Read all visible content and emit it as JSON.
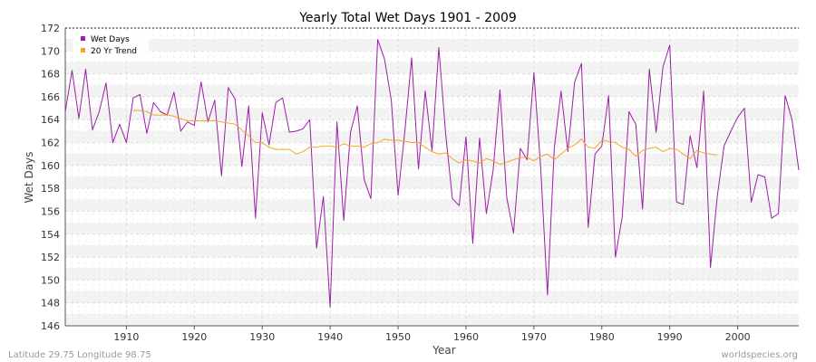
{
  "chart_data": {
    "type": "line",
    "title": "Yearly Total Wet Days 1901 - 2009",
    "xlabel": "Year",
    "ylabel": "Wet Days",
    "xlim": [
      1901,
      2009
    ],
    "ylim": [
      146,
      172
    ],
    "x_ticks": [
      1910,
      1920,
      1930,
      1940,
      1950,
      1960,
      1970,
      1980,
      1990,
      2000
    ],
    "y_ticks": [
      146,
      148,
      150,
      152,
      154,
      156,
      158,
      160,
      162,
      164,
      166,
      168,
      170,
      172
    ],
    "grid": true,
    "legend_position": "top-left",
    "series": [
      {
        "name": "Wet Days",
        "color": "#9b1fa8",
        "x_start": 1901,
        "values": [
          164.7,
          168.3,
          164.1,
          168.4,
          163.1,
          164.7,
          167.2,
          162.0,
          163.6,
          162.0,
          165.9,
          166.2,
          162.8,
          165.5,
          164.7,
          164.4,
          166.4,
          163.0,
          163.8,
          163.5,
          167.3,
          163.8,
          165.7,
          159.1,
          166.8,
          165.8,
          159.9,
          165.2,
          155.4,
          164.6,
          161.8,
          165.5,
          165.9,
          162.9,
          163.0,
          163.2,
          164.0,
          152.8,
          157.3,
          147.6,
          163.8,
          155.2,
          162.9,
          165.2,
          158.8,
          157.1,
          171.0,
          169.3,
          165.7,
          157.4,
          163.0,
          169.4,
          159.7,
          166.5,
          161.3,
          170.3,
          162.8,
          157.1,
          156.5,
          162.5,
          153.2,
          162.4,
          155.8,
          159.6,
          166.6,
          157.2,
          154.1,
          161.5,
          160.5,
          168.1,
          159.8,
          148.7,
          161.5,
          166.5,
          161.2,
          167.3,
          168.9,
          154.6,
          161.0,
          161.7,
          166.1,
          152.0,
          155.5,
          164.7,
          163.6,
          156.2,
          168.4,
          162.9,
          168.6,
          170.5,
          156.8,
          156.6,
          162.6,
          159.8,
          166.5,
          151.1,
          157.3,
          161.7,
          163.0,
          164.2,
          165.0,
          156.8,
          159.2,
          159.0,
          155.4,
          155.8,
          166.1,
          164.0,
          159.6
        ]
      },
      {
        "name": "20 Yr Trend",
        "color": "#f5a623",
        "x_start": 1911,
        "values": [
          164.8,
          164.8,
          164.7,
          164.4,
          164.4,
          164.4,
          164.3,
          164.1,
          163.9,
          163.9,
          163.9,
          163.9,
          163.9,
          163.8,
          163.7,
          163.6,
          163.1,
          162.6,
          162.0,
          162.0,
          161.6,
          161.4,
          161.4,
          161.4,
          161.0,
          161.2,
          161.6,
          161.6,
          161.7,
          161.7,
          161.6,
          161.9,
          161.7,
          161.7,
          161.6,
          161.9,
          162.0,
          162.3,
          162.2,
          162.2,
          162.1,
          162.0,
          162.0,
          161.6,
          161.2,
          161.0,
          161.1,
          160.6,
          160.2,
          160.5,
          160.4,
          160.2,
          160.6,
          160.4,
          160.1,
          160.3,
          160.5,
          160.7,
          160.7,
          160.4,
          160.8,
          161.0,
          160.5,
          161.0,
          161.5,
          161.8,
          162.3,
          161.6,
          161.5,
          162.2,
          162.1,
          162.0,
          161.6,
          161.4,
          160.8,
          161.3,
          161.5,
          161.6,
          161.2,
          161.5,
          161.4,
          161.0,
          160.6,
          161.3,
          161.1,
          161.0,
          160.9
        ]
      }
    ]
  },
  "footer": {
    "left": "Latitude 29.75 Longitude 98.75",
    "right": "worldspecies.org"
  }
}
